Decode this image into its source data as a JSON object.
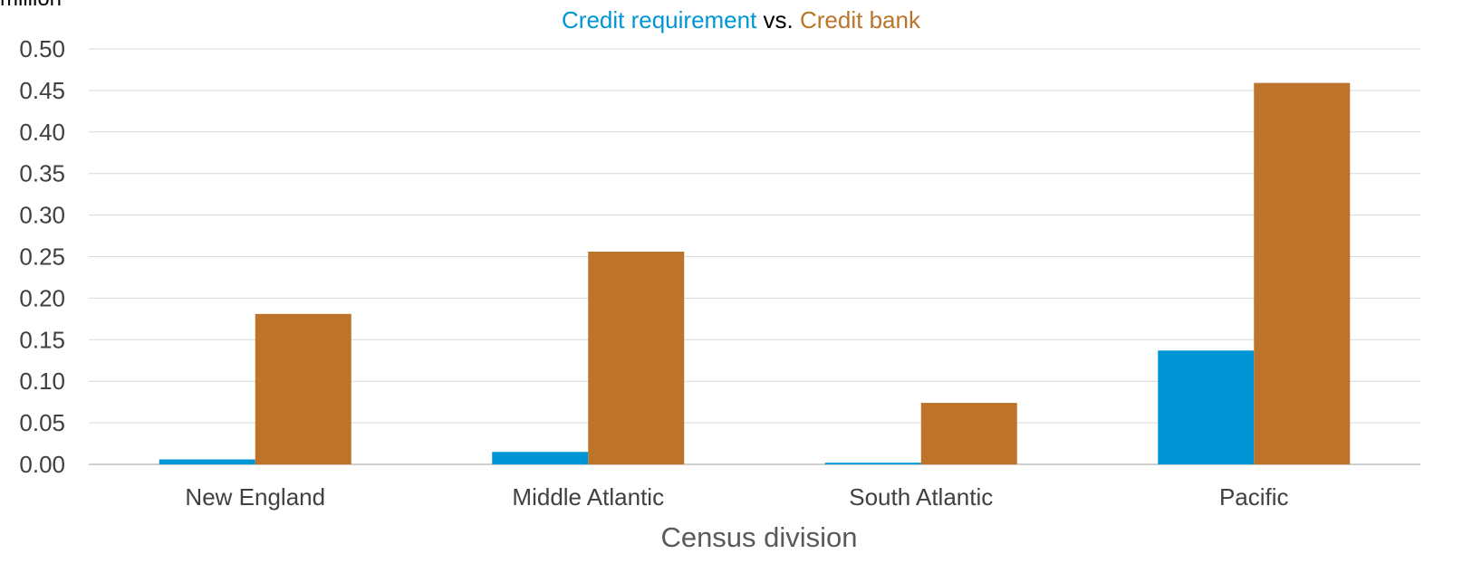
{
  "chart_data": {
    "type": "bar",
    "title_parts": [
      {
        "text": "Credit requirement",
        "color": "#0096D6"
      },
      {
        "text": " vs. ",
        "color": "#000000"
      },
      {
        "text": "Credit bank",
        "color": "#BD732A"
      }
    ],
    "unit_label": "million",
    "xlabel": "Census division",
    "ylabel": "",
    "categories": [
      "New England",
      "Middle Atlantic",
      "South Atlantic",
      "Pacific"
    ],
    "series": [
      {
        "name": "Credit requirement",
        "color": "#0096D6",
        "values": [
          0.006,
          0.015,
          0.002,
          0.137
        ]
      },
      {
        "name": "Credit bank",
        "color": "#BD732A",
        "values": [
          0.181,
          0.256,
          0.074,
          0.459
        ]
      }
    ],
    "ylim": [
      0,
      0.5
    ],
    "yticks": [
      "0.00",
      "0.05",
      "0.10",
      "0.15",
      "0.20",
      "0.25",
      "0.30",
      "0.35",
      "0.40",
      "0.45",
      "0.50"
    ],
    "grid": true,
    "gridColor": "#D9D9D9",
    "axisColor": "#BFBFBF"
  }
}
